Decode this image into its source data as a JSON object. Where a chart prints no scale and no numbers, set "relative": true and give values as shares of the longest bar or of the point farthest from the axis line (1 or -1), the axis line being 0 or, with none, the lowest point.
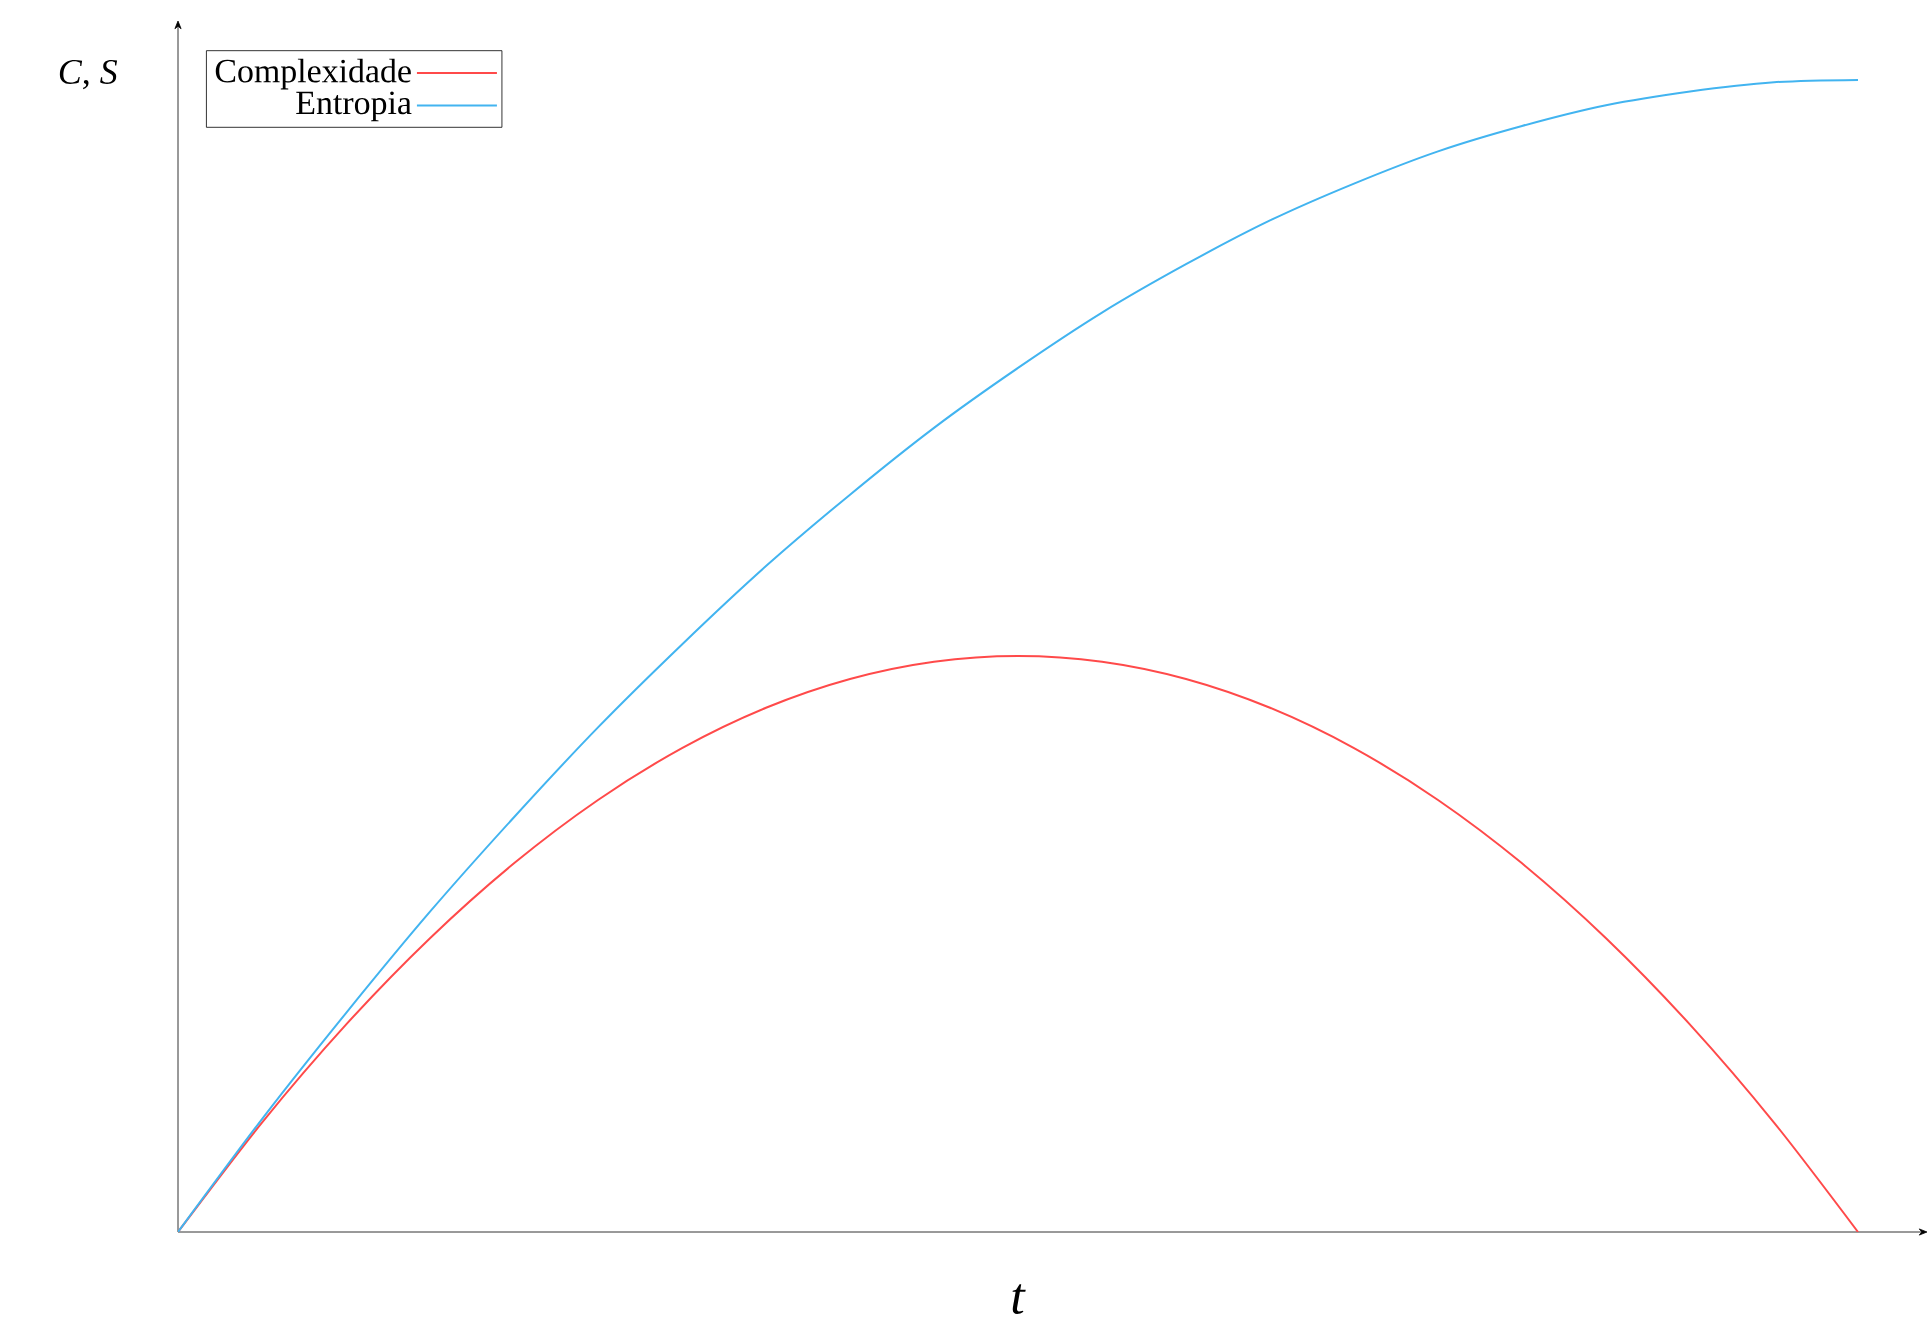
{
  "chart_data": {
    "type": "line",
    "relative": true,
    "xlabel": "*t*",
    "ylabel": "*C*, *S*",
    "legend": "top left",
    "categories": [
      null,
      null,
      null,
      null,
      null,
      null,
      null,
      null,
      null,
      null,
      null,
      null,
      null,
      null,
      null,
      null,
      null,
      null,
      null,
      null,
      null
    ],
    "series": [
      {
        "name": "Complexidade",
        "color": "#ff4a4a",
        "values": [
          0,
          0.095,
          0.18,
          0.255,
          0.32,
          0.375,
          0.42,
          0.455,
          0.48,
          0.495,
          0.5,
          0.495,
          0.48,
          0.455,
          0.42,
          0.375,
          0.32,
          0.255,
          0.18,
          0.095,
          0
        ]
      },
      {
        "name": "Entropia",
        "color": "#42b4f0",
        "values": [
          0,
          0.098,
          0.19,
          0.278,
          0.36,
          0.438,
          0.51,
          0.578,
          0.64,
          0.698,
          0.75,
          0.798,
          0.84,
          0.878,
          0.91,
          0.938,
          0.96,
          0.978,
          0.99,
          0.998,
          1
        ]
      }
    ]
  }
}
